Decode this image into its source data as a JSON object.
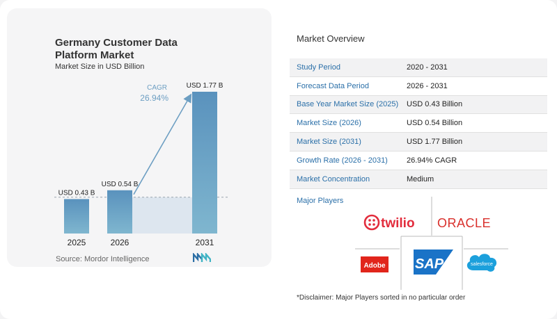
{
  "chart_data": {
    "type": "bar",
    "title": "Germany Customer Data Platform Market",
    "subtitle": "Market Size in USD Billion",
    "categories": [
      "2025",
      "2026",
      "2031"
    ],
    "values": [
      0.43,
      0.54,
      1.77
    ],
    "value_labels": [
      "USD 0.43 B",
      "USD 0.54 B",
      "USD 1.77 B"
    ],
    "cagr_label": "CAGR",
    "cagr_value": "26.94%",
    "bar_color": "#6b9fc4",
    "xlabel": "",
    "ylabel": ""
  },
  "source": "Source:  Mordor Intelligence",
  "overview": {
    "title": "Market Overview",
    "rows": [
      {
        "label": "Study Period",
        "value": "2020 - 2031"
      },
      {
        "label": "Forecast Data Period",
        "value": "2026 - 2031"
      },
      {
        "label": "Base Year Market Size (2025)",
        "value": "USD 0.43 Billion"
      },
      {
        "label": "Market Size (2026)",
        "value": "USD 0.54 Billion"
      },
      {
        "label": "Market Size (2031)",
        "value": "USD 1.77 Billion"
      },
      {
        "label": "Growth Rate (2026 - 2031)",
        "value": "26.94% CAGR"
      },
      {
        "label": "Market Concentration",
        "value": "Medium"
      }
    ]
  },
  "players": {
    "title": "Major Players",
    "names": [
      "twilio",
      "ORACLE",
      "Adobe",
      "SAP",
      "salesforce"
    ],
    "colors": {
      "twilio": "#e22c3c",
      "oracle": "#d9302c",
      "adobe": "#e1251b",
      "sap": "#1a73c7",
      "salesforce": "#1ca0dc"
    }
  },
  "disclaimer": "*Disclaimer: Major Players sorted in no particular order"
}
